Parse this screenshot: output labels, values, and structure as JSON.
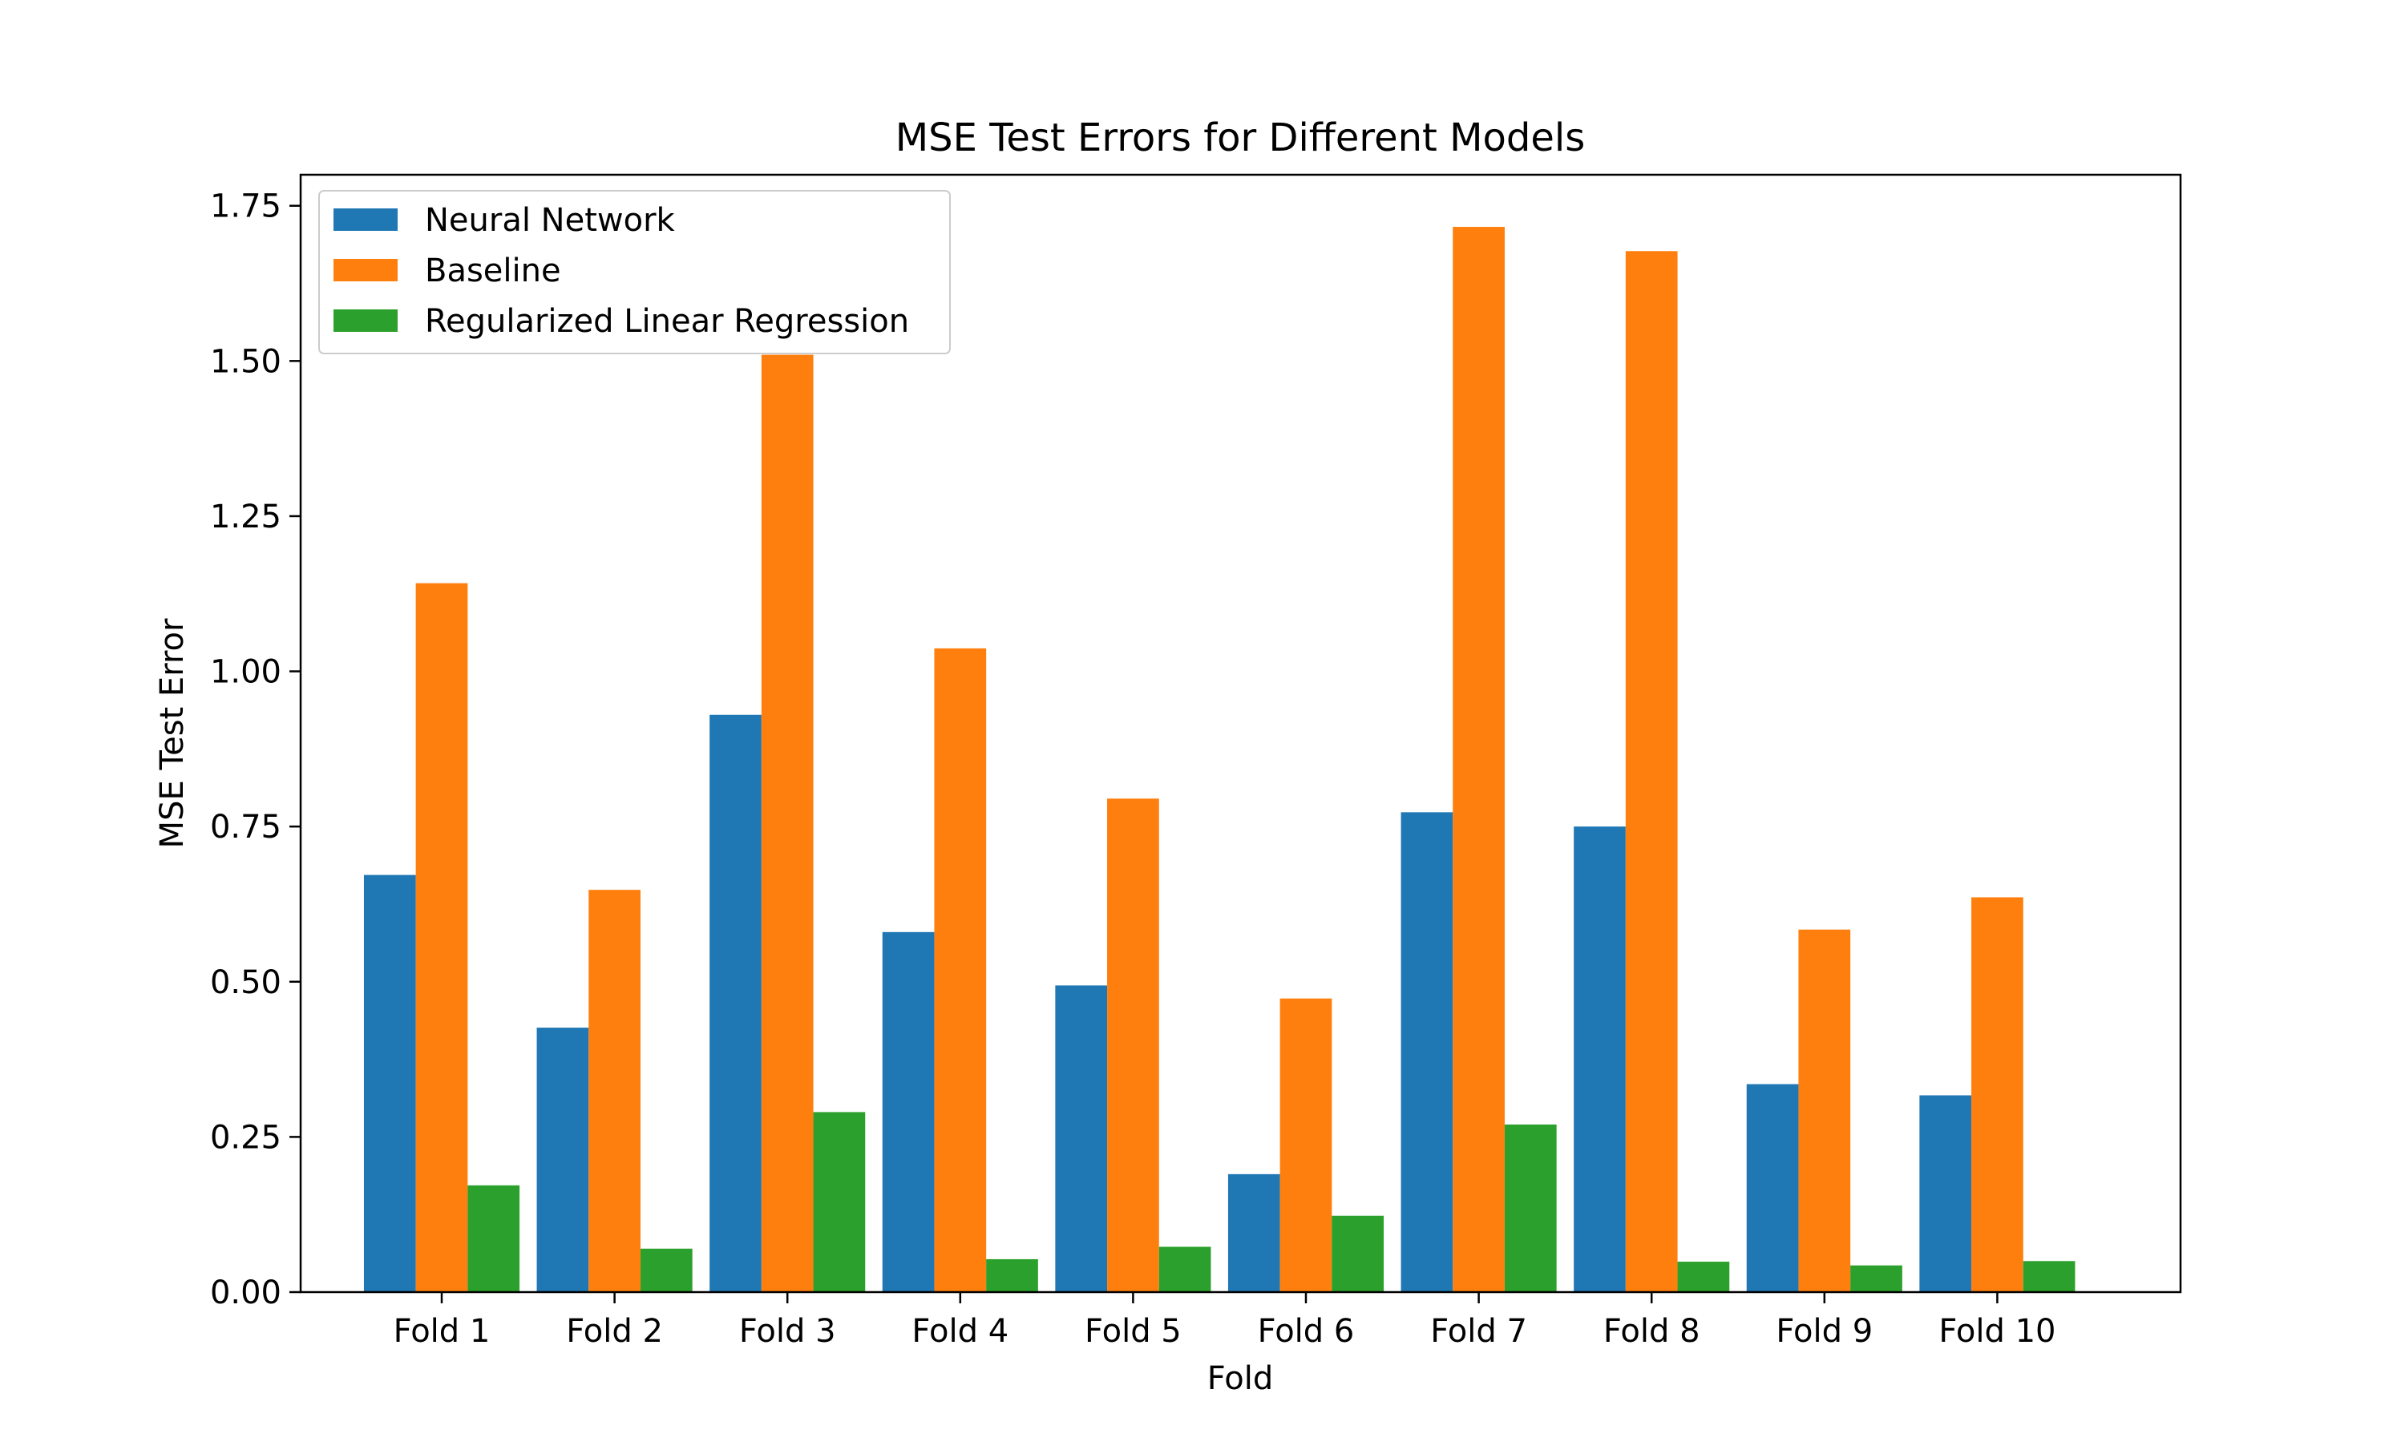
{
  "chart_data": {
    "type": "bar",
    "title": "MSE Test Errors for Different Models",
    "xlabel": "Fold",
    "ylabel": "MSE Test Error",
    "categories": [
      "Fold 1",
      "Fold 2",
      "Fold 3",
      "Fold 4",
      "Fold 5",
      "Fold 6",
      "Fold 7",
      "Fold 8",
      "Fold 9",
      "Fold 10"
    ],
    "series": [
      {
        "name": "Neural Network",
        "color": "#1f77b4",
        "values": [
          0.672,
          0.426,
          0.93,
          0.58,
          0.494,
          0.19,
          0.773,
          0.75,
          0.335,
          0.317
        ]
      },
      {
        "name": "Baseline",
        "color": "#ff7f0e",
        "values": [
          1.142,
          0.648,
          1.51,
          1.037,
          0.795,
          0.473,
          1.716,
          1.677,
          0.584,
          0.636
        ]
      },
      {
        "name": "Regularized Linear Regression",
        "color": "#2ca02c",
        "values": [
          0.172,
          0.07,
          0.29,
          0.053,
          0.073,
          0.123,
          0.27,
          0.049,
          0.043,
          0.05
        ]
      }
    ],
    "ylim": [
      0,
      1.8
    ],
    "yticks": [
      "0.00",
      "0.25",
      "0.50",
      "0.75",
      "1.00",
      "1.25",
      "1.50",
      "1.75"
    ],
    "grid": false,
    "legend_position": "upper-left"
  }
}
